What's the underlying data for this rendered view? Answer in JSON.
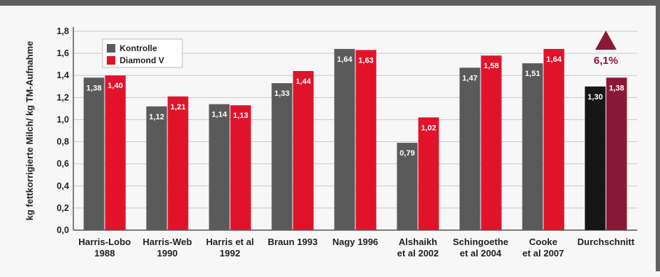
{
  "chart_data": {
    "type": "bar",
    "ylabel": "kg fettkorrigierte Milch/ kg TM-Aufnahme",
    "ylim": [
      0.0,
      1.8
    ],
    "yticks": [
      "0,0",
      "0,2",
      "0,4",
      "0,6",
      "0,8",
      "1,0",
      "1,2",
      "1,4",
      "1,6",
      "1,8"
    ],
    "grid": true,
    "legend_position": "top-left",
    "categories": [
      [
        "Harris-Lobo",
        "1988"
      ],
      [
        "Harris-Web",
        "1990"
      ],
      [
        "Harris et al",
        "1992"
      ],
      [
        "Braun 1993"
      ],
      [
        "Nagy 1996"
      ],
      [
        "Alshaikh",
        "et al 2002"
      ],
      [
        "Schingoethe",
        "et al 2004"
      ],
      [
        "Cooke",
        "et al 2007"
      ],
      [
        "Durchschnitt"
      ]
    ],
    "series": [
      {
        "name": "Kontrolle",
        "color": "#5a5a5a",
        "values": [
          1.38,
          1.12,
          1.14,
          1.33,
          1.64,
          0.79,
          1.47,
          1.51,
          1.3
        ],
        "labels": [
          "1,38",
          "1,12",
          "1,14",
          "1,33",
          "1,64",
          "0,79",
          "1,47",
          "1,51",
          "1,30"
        ]
      },
      {
        "name": "Diamond V",
        "color": "#e1132b",
        "values": [
          1.4,
          1.21,
          1.13,
          1.44,
          1.63,
          1.02,
          1.58,
          1.64,
          1.38
        ],
        "labels": [
          "1,40",
          "1,21",
          "1,13",
          "1,44",
          "1,63",
          "1,02",
          "1,58",
          "1,64",
          "1,38"
        ]
      }
    ],
    "average_colors": {
      "Kontrolle": "#161616",
      "Diamond V": "#8c1838"
    },
    "annotation": {
      "text": "6,1%",
      "category": "Durchschnitt",
      "marker": "triangle-up-icon",
      "color": "#8c1838"
    }
  }
}
